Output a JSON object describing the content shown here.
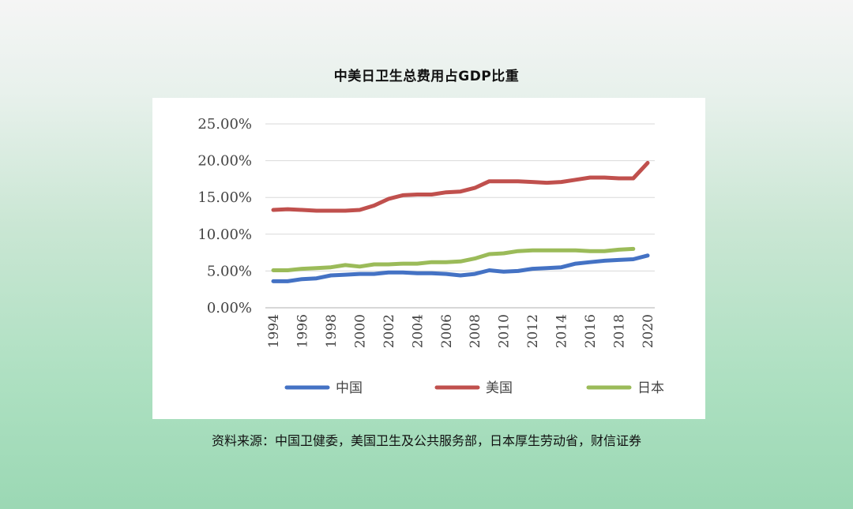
{
  "title": "中美日卫生总费用占GDP比重",
  "source": "资料来源：中国卫健委，美国卫生及公共服务部，日本厚生劳动省，财信证券",
  "chart_data": {
    "type": "line",
    "title": "中美日卫生总费用占GDP比重",
    "xlabel": "",
    "ylabel": "",
    "ylim": [
      0,
      25
    ],
    "y_ticks": [
      "0.00%",
      "5.00%",
      "10.00%",
      "15.00%",
      "20.00%",
      "25.00%"
    ],
    "x_ticks": [
      "1994",
      "1996",
      "1998",
      "2000",
      "2002",
      "2004",
      "2006",
      "2008",
      "2010",
      "2012",
      "2014",
      "2016",
      "2018",
      "2020"
    ],
    "grid": true,
    "legend_position": "bottom",
    "series": [
      {
        "name": "中国",
        "color": "#4472c4",
        "x": [
          1994,
          1995,
          1996,
          1997,
          1998,
          1999,
          2000,
          2001,
          2002,
          2003,
          2004,
          2005,
          2006,
          2007,
          2008,
          2009,
          2010,
          2011,
          2012,
          2013,
          2014,
          2015,
          2016,
          2017,
          2018,
          2019,
          2020
        ],
        "values": [
          3.6,
          3.6,
          3.9,
          4.0,
          4.4,
          4.5,
          4.6,
          4.6,
          4.8,
          4.8,
          4.7,
          4.7,
          4.6,
          4.4,
          4.6,
          5.1,
          4.9,
          5.0,
          5.3,
          5.4,
          5.5,
          6.0,
          6.2,
          6.4,
          6.5,
          6.6,
          7.1
        ]
      },
      {
        "name": "美国",
        "color": "#c0504d",
        "x": [
          1994,
          1995,
          1996,
          1997,
          1998,
          1999,
          2000,
          2001,
          2002,
          2003,
          2004,
          2005,
          2006,
          2007,
          2008,
          2009,
          2010,
          2011,
          2012,
          2013,
          2014,
          2015,
          2016,
          2017,
          2018,
          2019,
          2020
        ],
        "values": [
          13.3,
          13.4,
          13.3,
          13.2,
          13.2,
          13.2,
          13.3,
          13.9,
          14.8,
          15.3,
          15.4,
          15.4,
          15.7,
          15.8,
          16.3,
          17.2,
          17.2,
          17.2,
          17.1,
          17.0,
          17.1,
          17.4,
          17.7,
          17.7,
          17.6,
          17.6,
          19.7
        ]
      },
      {
        "name": "日本",
        "color": "#9bbb59",
        "x": [
          1994,
          1995,
          1996,
          1997,
          1998,
          1999,
          2000,
          2001,
          2002,
          2003,
          2004,
          2005,
          2006,
          2007,
          2008,
          2009,
          2010,
          2011,
          2012,
          2013,
          2014,
          2015,
          2016,
          2017,
          2018,
          2019
        ],
        "values": [
          5.1,
          5.1,
          5.3,
          5.4,
          5.5,
          5.8,
          5.6,
          5.9,
          5.9,
          6.0,
          6.0,
          6.2,
          6.2,
          6.3,
          6.7,
          7.3,
          7.4,
          7.7,
          7.8,
          7.8,
          7.8,
          7.8,
          7.7,
          7.7,
          7.9,
          8.0
        ]
      }
    ]
  }
}
